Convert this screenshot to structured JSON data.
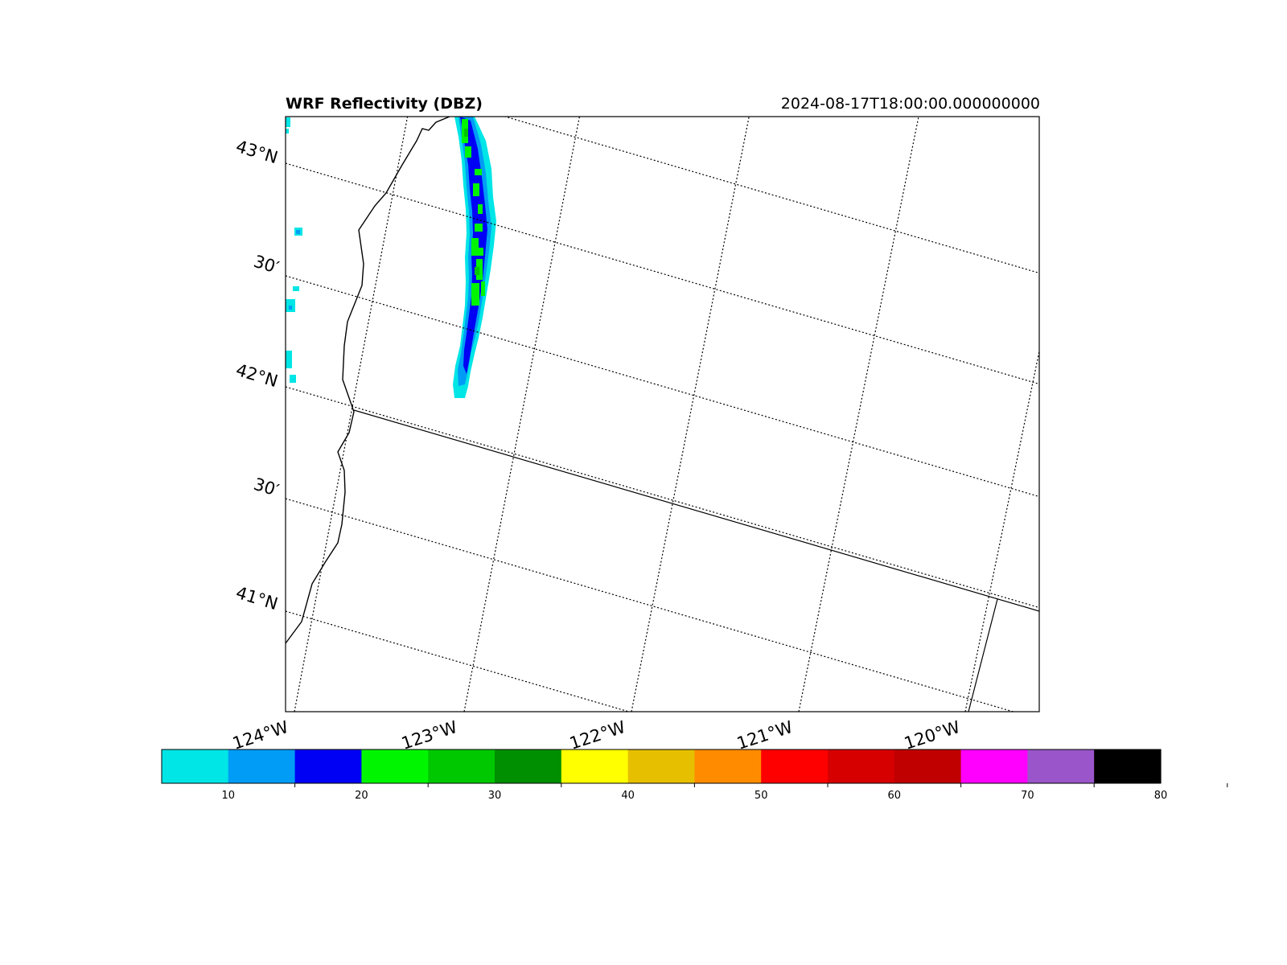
{
  "map": {
    "title": "WRF Reflectivity (DBZ)",
    "timestamp": "2024-08-17T18:00:00.000000000",
    "lat_labels": [
      "43°N",
      "30′",
      "42°N",
      "30′",
      "41°N"
    ],
    "lon_labels": [
      "124°W",
      "123°W",
      "122°W",
      "121°W",
      "120°W"
    ]
  },
  "colorbar": {
    "tick_labels": [
      "10",
      "20",
      "30",
      "40",
      "50",
      "60",
      "70",
      "80"
    ],
    "colors": [
      "#00e5e6",
      "#009cf5",
      "#0000f5",
      "#00f500",
      "#00c800",
      "#008f00",
      "#ffff00",
      "#e6c000",
      "#ff8c00",
      "#ff0000",
      "#d60000",
      "#c00000",
      "#ff00ff",
      "#9955c9",
      "#000000"
    ]
  }
}
